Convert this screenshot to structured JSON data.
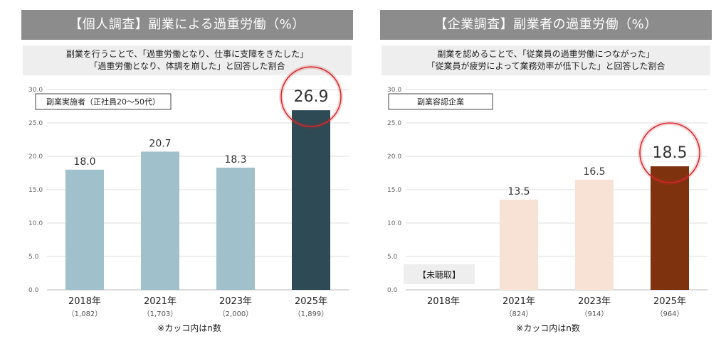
{
  "chart_data": [
    {
      "type": "bar",
      "title": "【個人調査】副業による過重労働（%）",
      "subtitle_lines": [
        "副業を行うことで、「過重労働となり、仕事に支障をきたした」",
        "「過重労働となり、体調を崩した」と回答した割合"
      ],
      "legend": "副業実施者（正社員20～50代）",
      "categories": [
        "2018年",
        "2021年",
        "2023年",
        "2025年"
      ],
      "values": [
        18.0,
        20.7,
        18.3,
        26.9
      ],
      "value_labels": [
        "18.0",
        "20.7",
        "18.3",
        "26.9"
      ],
      "n_labels": [
        "（1,082）",
        "（1,703）",
        "（2,000）",
        "（1,899）"
      ],
      "highlight_index": 3,
      "yticks": [
        "0.0",
        "5.0",
        "10.0",
        "15.0",
        "20.0",
        "25.0",
        "30.0"
      ],
      "ylim": [
        0,
        30
      ],
      "note": "※カッコ内はn数",
      "colors": {
        "bar": "#a0c0cb",
        "highlight": "#2e4a54"
      }
    },
    {
      "type": "bar",
      "title": "【企業調査】副業者の過重労働（%）",
      "subtitle_lines": [
        "副業を認めることで、「従業員の過重労働につながった」",
        "「従業員が疲労によって業務効率が低下した」と回答した割合"
      ],
      "legend": "副業容認企業",
      "categories": [
        "2018年",
        "2021年",
        "2023年",
        "2025年"
      ],
      "values": [
        null,
        13.5,
        16.5,
        18.5
      ],
      "value_labels": [
        "",
        "13.5",
        "16.5",
        "18.5"
      ],
      "n_labels": [
        "",
        "（824）",
        "（914）",
        "（964）"
      ],
      "unasked_label": "【未聴取】",
      "highlight_index": 3,
      "yticks": [
        "0.0",
        "5.0",
        "10.0",
        "15.0",
        "20.0",
        "25.0",
        "30.0"
      ],
      "ylim": [
        0,
        30
      ],
      "note": "※カッコ内はn数",
      "colors": {
        "bar": "#f8e2d6",
        "highlight": "#7e330e"
      }
    }
  ],
  "styles": {
    "highlight_circle": "#d6262a",
    "grid": "#dddddd"
  }
}
